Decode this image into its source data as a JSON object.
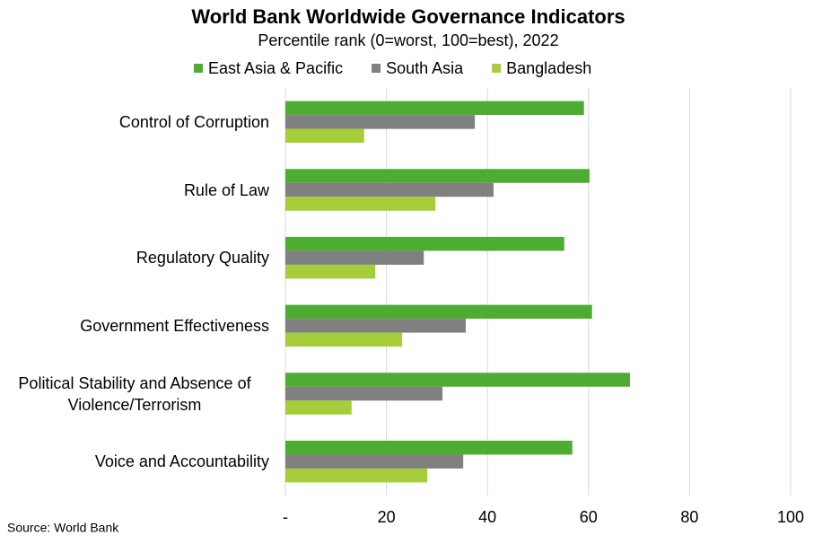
{
  "chart_data": {
    "type": "bar",
    "orientation": "horizontal",
    "title": "World Bank Worldwide Governance Indicators",
    "subtitle": "Percentile rank (0=worst, 100=best), 2022",
    "source": "Source: World Bank",
    "categories": [
      "Control of Corruption",
      "Rule of Law",
      "Regulatory Quality",
      "Government Effectiveness",
      "Political Stability and Absence of Violence/Terrorism",
      "Voice and Accountability"
    ],
    "series": [
      {
        "name": "East Asia & Pacific",
        "color": "#4eac33",
        "values": [
          59.1,
          60.2,
          55.2,
          60.7,
          68.2,
          56.8
        ]
      },
      {
        "name": "South Asia",
        "color": "#808080",
        "values": [
          37.5,
          41.2,
          27.4,
          35.7,
          31.1,
          35.2
        ]
      },
      {
        "name": "Bangladesh",
        "color": "#a6cd3a",
        "values": [
          15.6,
          29.7,
          17.8,
          23.1,
          13.1,
          28.1
        ]
      }
    ],
    "xlim": [
      0,
      100
    ],
    "xticks": [
      {
        "value": 0,
        "label": "-"
      },
      20,
      40,
      60,
      80,
      100
    ],
    "grid": true,
    "legend": "top"
  }
}
